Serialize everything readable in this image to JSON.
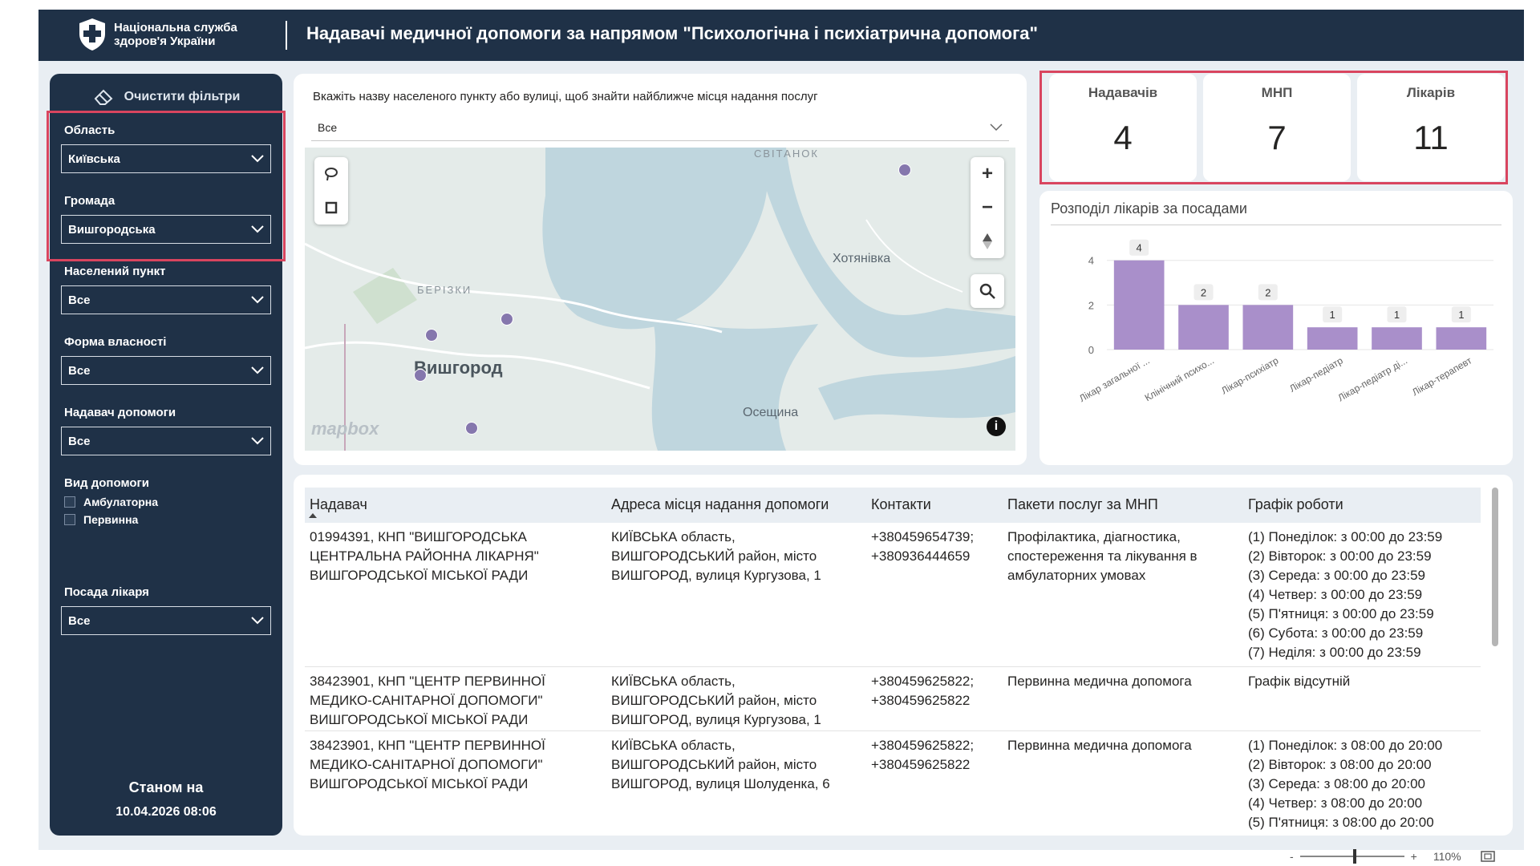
{
  "header": {
    "org_name": "Національна служба здоров'я України",
    "title": "Надавачі медичної допомоги за напрямом \"Психологічна і психіатрична допомога\""
  },
  "sidebar": {
    "clear_filters": "Очистити фільтри",
    "filters": {
      "oblast": {
        "label": "Область",
        "value": "Київська"
      },
      "hromada": {
        "label": "Громада",
        "value": "Вишгородська"
      },
      "settlement": {
        "label": "Населений пункт",
        "value": "Все"
      },
      "ownership": {
        "label": "Форма власності",
        "value": "Все"
      },
      "provider": {
        "label": "Надавач допомоги",
        "value": "Все"
      },
      "care_type": {
        "label": "Вид допомоги",
        "options": [
          "Амбулаторна",
          "Первинна"
        ]
      },
      "doctor_position": {
        "label": "Посада лікаря",
        "value": "Все"
      }
    },
    "as_of_label": "Станом на",
    "as_of_value": "10.04.2026 08:06"
  },
  "map": {
    "hint": "Вкажіть назву населеного пункту або вулиці, щоб знайти найближче місця надання послуг",
    "search_value": "Все",
    "places": [
      "СВІТАНОК",
      "БЕРІЗКИ",
      "Вишгород",
      "Хотянівка",
      "Осещина"
    ],
    "attribution": "mapbox",
    "zoom_in": "+",
    "zoom_out": "−",
    "info": "i"
  },
  "kpis": [
    {
      "label": "Надавачів",
      "value": "4"
    },
    {
      "label": "МНП",
      "value": "7"
    },
    {
      "label": "Лікарів",
      "value": "11"
    }
  ],
  "chart_data": {
    "type": "bar",
    "title": "Розподіл лікарів за посадами",
    "categories": [
      "Лікар загальної ...",
      "Клінічний психо...",
      "Лікар-психіатр",
      "Лікар-педіатр",
      "Лікар-педіатр ді...",
      "Лікар-терапевт"
    ],
    "values": [
      4,
      2,
      2,
      1,
      1,
      1
    ],
    "yticks": [
      0,
      2,
      4
    ],
    "ylim": [
      0,
      4.6
    ],
    "color": "#a98fca"
  },
  "table": {
    "columns": [
      "Надавач",
      "Адреса місця надання допомоги",
      "Контакти",
      "Пакети послуг за МНП",
      "Графік роботи"
    ],
    "rows": [
      {
        "provider": "01994391, КНП \"ВИШГОРОДСЬКА\nЦЕНТРАЛЬНА РАЙОННА ЛІКАРНЯ\"\nВИШГОРОДСЬКОЇ МІСЬКОЇ РАДИ",
        "address": "КИЇВСЬКА область,\nВИШГОРОДСЬКИЙ район, місто\nВИШГОРОД, вулиця Кургузова, 1",
        "contacts": "+380459654739;\n+380936444659",
        "packages": "Профілактика, діагностика,\nспостереження та лікування в\nамбулаторних умовах",
        "schedule": "(1) Понеділок: з 00:00 до 23:59\n(2) Вівторок: з 00:00 до 23:59\n(3) Середа: з 00:00 до 23:59\n(4) Четвер: з 00:00 до 23:59\n(5) П'ятниця: з 00:00 до 23:59\n(6) Субота: з 00:00 до 23:59\n(7) Неділя: з 00:00 до 23:59"
      },
      {
        "provider": "38423901, КНП \"ЦЕНТР ПЕРВИННОЇ\nМЕДИКО-САНІТАРНОЇ ДОПОМОГИ\"\nВИШГОРОДСЬКОЇ МІСЬКОЇ РАДИ",
        "address": "КИЇВСЬКА область,\nВИШГОРОДСЬКИЙ район, місто\nВИШГОРОД, вулиця Кургузова, 1",
        "contacts": "+380459625822;\n+380459625822",
        "packages": "Первинна медична допомога",
        "schedule": "Графік відсутній"
      },
      {
        "provider": "38423901, КНП \"ЦЕНТР ПЕРВИННОЇ\nМЕДИКО-САНІТАРНОЇ ДОПОМОГИ\"\nВИШГОРОДСЬКОЇ МІСЬКОЇ РАДИ",
        "address": "КИЇВСЬКА область,\nВИШГОРОДСЬКИЙ район, місто\nВИШГОРОД, вулиця Шолуденка, 6",
        "contacts": "+380459625822;\n+380459625822",
        "packages": "Первинна медична допомога",
        "schedule": "(1) Понеділок: з 08:00 до 20:00\n(2) Вівторок: з 08:00 до 20:00\n(3) Середа: з 08:00 до 20:00\n(4) Четвер: з 08:00 до 20:00\n(5) П'ятниця: з 08:00 до 20:00"
      }
    ]
  },
  "footer": {
    "zoom_minus": "-",
    "zoom_plus": "+",
    "zoom_level": "110%"
  },
  "colors": {
    "navy": "#1f3147",
    "accent_red": "#d9455f",
    "bar": "#a98fca",
    "pin": "#8577ad"
  }
}
